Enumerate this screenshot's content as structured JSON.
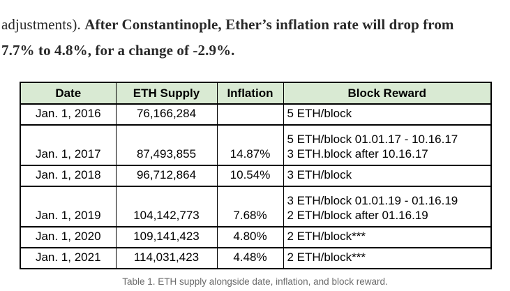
{
  "paragraph": {
    "regular": "adjustments). ",
    "bold_line1": "After Constantinople, Ether’s inflation rate will drop from",
    "bold_line2": "7.7% to 4.8%, for a change of -2.9%."
  },
  "table": {
    "headers": [
      "Date",
      "ETH Supply",
      "Inflation",
      "Block Reward"
    ],
    "rows": [
      {
        "date": "Jan. 1, 2016",
        "supply": "76,166,284",
        "inflation": "",
        "reward": "5 ETH/block"
      },
      {
        "date": "Jan. 1, 2017",
        "supply": "87,493,855",
        "inflation": "14.87%",
        "reward": "5 ETH/block 01.01.17 - 10.16.17\n3 ETH.block after 10.16.17"
      },
      {
        "date": "Jan. 1, 2018",
        "supply": "96,712,864",
        "inflation": "10.54%",
        "reward": "3 ETH/block"
      },
      {
        "date": "Jan. 1, 2019",
        "supply": "104,142,773",
        "inflation": "7.68%",
        "reward": "3 ETH/block 01.01.19 - 01.16.19\n2 ETH/block after 01.16.19"
      },
      {
        "date": "Jan. 1, 2020",
        "supply": "109,141,423",
        "inflation": "4.80%",
        "reward": "2 ETH/block***"
      },
      {
        "date": "Jan. 1, 2021",
        "supply": "114,031,423",
        "inflation": "4.48%",
        "reward": "2 ETH/block***"
      }
    ]
  },
  "caption": "Table 1. ETH supply alongside date, inflation, and block reward.",
  "colors": {
    "table_header_bg": "#d9ead3",
    "table_border": "#000000",
    "caption_text": "#6b6b6b",
    "body_text": "#292929"
  }
}
